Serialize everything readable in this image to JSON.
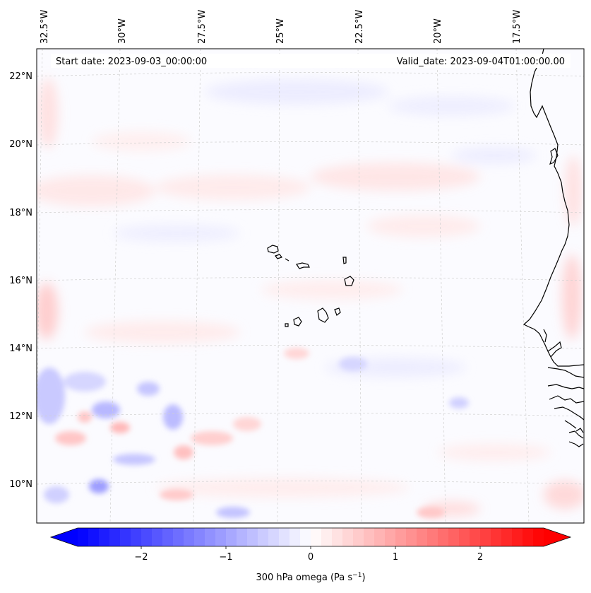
{
  "figure": {
    "projection_note": "",
    "start_date_label": "Start date: 2023-09-03_00:00:00",
    "valid_date_label": "Valid_date: 2023-09-04T01:00:00.00"
  },
  "map": {
    "lon_labels": [
      "32.5°W",
      "30°W",
      "27.5°W",
      "25°W",
      "22.5°W",
      "20°W",
      "17.5°W"
    ],
    "lat_labels": [
      "22°N",
      "20°N",
      "18°N",
      "16°N",
      "14°N",
      "12°N",
      "10°N"
    ],
    "lon_range": [
      -33.0,
      -16.0
    ],
    "lat_range": [
      8.9,
      22.8
    ],
    "gridlines": true,
    "coastline_color": "#000000"
  },
  "colorbar": {
    "label_main": "300 hPa omega (Pa s",
    "label_sup": "−1",
    "label_end": ")",
    "ticks": [
      "−2",
      "−1",
      "0",
      "1",
      "2"
    ],
    "tick_values": [
      -2,
      -1,
      0,
      1,
      2
    ],
    "vmin": -2.75,
    "vmax": 2.75,
    "colormap": "bwr",
    "extend": "both"
  },
  "colors": {
    "negative": "#0000ff",
    "neutral": "#ffffff",
    "positive": "#ff0000"
  }
}
